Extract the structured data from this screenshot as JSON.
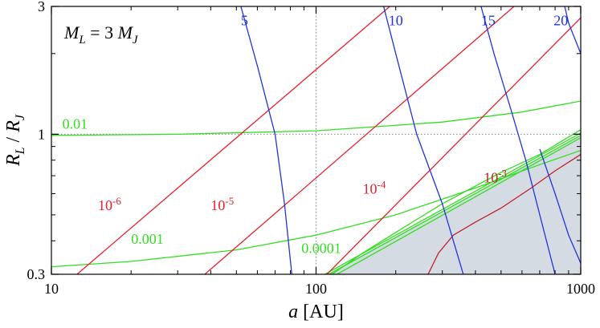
{
  "chart_data": {
    "type": "line",
    "title": "",
    "xlabel": {
      "symbol": "a",
      "unit": " [AU]"
    },
    "ylabel": {
      "main": "R",
      "main_sub": "L",
      "sep": " / ",
      "denom": "R",
      "denom_sub": "J"
    },
    "annotation": {
      "lhs": "M",
      "lhs_sub": "L",
      "eq": " = 3 ",
      "rhs": "M",
      "rhs_sub": "J"
    },
    "xscale": "log",
    "yscale": "log",
    "xlim": [
      10,
      1000
    ],
    "ylim": [
      0.3,
      3
    ],
    "xticks": [
      {
        "value": 10,
        "label": "10"
      },
      {
        "value": 100,
        "label": "100"
      },
      {
        "value": 1000,
        "label": "1000"
      }
    ],
    "yticks": [
      {
        "value": 0.3,
        "label": "0.3"
      },
      {
        "value": 1,
        "label": "1"
      },
      {
        "value": 3,
        "label": "3"
      }
    ],
    "reference_lines": {
      "x": 100,
      "y": 1,
      "style": "dotted",
      "color": "#888888"
    },
    "shaded_region": {
      "color": "#d4dbe2",
      "boundary": [
        [
          110,
          0.3
        ],
        [
          1000,
          0.99
        ],
        [
          1000,
          0.3
        ]
      ]
    },
    "colors": {
      "red": "#e8202a",
      "green": "#33dd22",
      "blue": "#2233dd",
      "dark_red": "#c0202a"
    },
    "red_lines": [
      {
        "label": "10",
        "exp": "-6",
        "points": [
          [
            12.5,
            0.3
          ],
          [
            190,
            3
          ]
        ],
        "label_at": [
          15,
          0.52
        ]
      },
      {
        "label": "10",
        "exp": "-5",
        "points": [
          [
            38,
            0.3
          ],
          [
            560,
            3
          ]
        ],
        "label_at": [
          40,
          0.52
        ]
      },
      {
        "label": "10",
        "exp": "-4",
        "points": [
          [
            110,
            0.3
          ],
          [
            1000,
            2.72
          ]
        ],
        "label_at": [
          150,
          0.6
        ]
      },
      {
        "label": "10",
        "exp": "-3",
        "points": [
          [
            265,
            0.3
          ],
          [
            290,
            0.36
          ],
          [
            330,
            0.42
          ],
          [
            400,
            0.47
          ],
          [
            500,
            0.53
          ],
          [
            650,
            0.63
          ],
          [
            800,
            0.73
          ],
          [
            1000,
            0.84
          ]
        ],
        "label_at": [
          430,
          0.66
        ]
      }
    ],
    "green_lines": [
      {
        "label": "0.01",
        "points": [
          [
            10,
            0.99
          ],
          [
            30,
            1.0
          ],
          [
            100,
            1.03
          ],
          [
            300,
            1.11
          ],
          [
            600,
            1.21
          ],
          [
            1000,
            1.33
          ]
        ],
        "label_at": [
          11,
          1.05
        ]
      },
      {
        "label": "0.001",
        "points": [
          [
            10,
            0.32
          ],
          [
            20,
            0.335
          ],
          [
            50,
            0.37
          ],
          [
            100,
            0.42
          ],
          [
            200,
            0.5
          ],
          [
            400,
            0.63
          ],
          [
            700,
            0.77
          ],
          [
            1000,
            0.87
          ]
        ],
        "label_at": [
          20,
          0.39
        ]
      },
      {
        "label": "0.0001",
        "points": [
          [
            115,
            0.3
          ],
          [
            150,
            0.36
          ],
          [
            200,
            0.43
          ],
          [
            300,
            0.55
          ],
          [
            500,
            0.72
          ],
          [
            700,
            0.84
          ],
          [
            1000,
            1.04
          ]
        ],
        "label_at": [
          88,
          0.36
        ]
      },
      {
        "label": "",
        "points": [
          [
            108,
            0.3
          ],
          [
            1000,
            1.01
          ]
        ],
        "label_at": null
      },
      {
        "label": "",
        "points": [
          [
            112,
            0.3
          ],
          [
            1000,
            0.99
          ]
        ],
        "label_at": null
      },
      {
        "label": "",
        "points": [
          [
            120,
            0.3
          ],
          [
            1000,
            0.97
          ]
        ],
        "label_at": null
      }
    ],
    "blue_lines": [
      {
        "label": "5",
        "points": [
          [
            52,
            3
          ],
          [
            60,
            1.8
          ],
          [
            70,
            1.0
          ],
          [
            76,
            0.55
          ],
          [
            81,
            0.3
          ]
        ],
        "label_at": [
          52,
          2.55
        ]
      },
      {
        "label": "10",
        "points": [
          [
            180,
            3
          ],
          [
            200,
            2.0
          ],
          [
            240,
            1.0
          ],
          [
            300,
            0.55
          ],
          [
            360,
            0.3
          ]
        ],
        "label_at": [
          188,
          2.55
        ]
      },
      {
        "label": "15",
        "points": [
          [
            420,
            3
          ],
          [
            470,
            2.0
          ],
          [
            550,
            1.2
          ],
          [
            620,
            0.8
          ],
          [
            700,
            0.5
          ],
          [
            800,
            0.3
          ]
        ],
        "label_at": [
          420,
          2.55
        ]
      },
      {
        "label": "20",
        "points": [
          [
            870,
            3
          ],
          [
            900,
            2.6
          ],
          [
            1000,
            2.0
          ]
        ],
        "label_at": [
          790,
          2.55
        ]
      },
      {
        "label": "",
        "points": [
          [
            700,
            0.88
          ],
          [
            800,
            0.6
          ],
          [
            900,
            0.42
          ],
          [
            1000,
            0.33
          ]
        ],
        "label_at": null
      }
    ]
  }
}
